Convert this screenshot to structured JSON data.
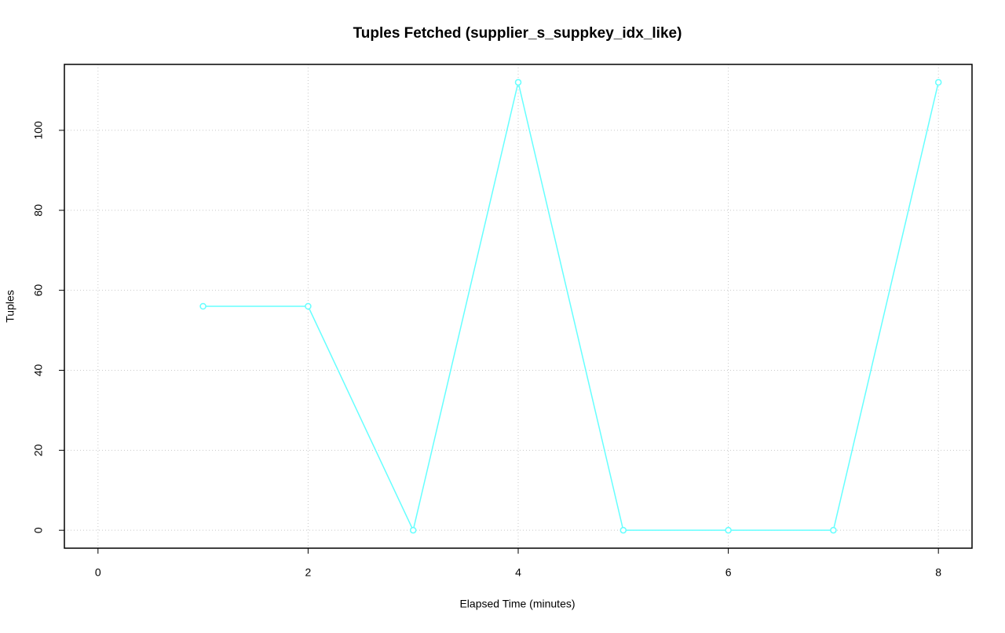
{
  "chart_data": {
    "type": "line",
    "title": "Tuples Fetched (supplier_s_suppkey_idx_like)",
    "x_label": "Elapsed Time (minutes)",
    "y_label": "Tuples",
    "x": [
      1,
      2,
      3,
      4,
      5,
      6,
      7,
      8
    ],
    "series": [
      {
        "color": "#66ffff",
        "values": [
          56,
          56,
          0,
          112,
          0,
          0,
          0,
          112
        ]
      }
    ],
    "xlim": [
      -0.32,
      8.32
    ],
    "xticks": [
      0,
      2,
      4,
      6,
      8
    ],
    "ylim": [
      -4.48,
      116.48
    ],
    "yticks": [
      0,
      20,
      40,
      60,
      80,
      100
    ],
    "grid": true
  }
}
